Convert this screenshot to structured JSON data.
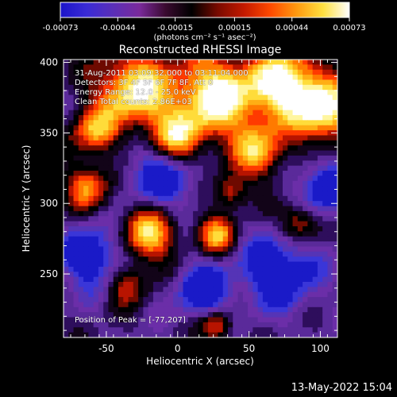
{
  "chart_data": {
    "type": "heatmap",
    "title": "Reconstructed RHESSI Image",
    "xlabel": "Heliocentric X (arcsec)",
    "ylabel": "Heliocentric Y (arcsec)",
    "xlim": [
      -80,
      112
    ],
    "ylim": [
      205,
      402
    ],
    "x_ticks": [
      -50,
      0,
      50,
      100
    ],
    "y_ticks": [
      250,
      300,
      350,
      400
    ],
    "colorbar": {
      "label": "(photons cm⁻² s⁻¹ asec⁻²)",
      "ticks": [
        "-0.00073",
        "-0.00044",
        "-0.00015",
        "0.00015",
        "0.00044",
        "0.00073"
      ],
      "range": [
        -0.00073,
        0.00073
      ],
      "colors": [
        "#1b14c8",
        "#3a2bd6",
        "#5a2fb8",
        "#7a2a9c",
        "#3a0a30",
        "#000000",
        "#7a0a00",
        "#c41a00",
        "#ff4a00",
        "#ff9a10",
        "#ffe040",
        "#ffffff"
      ]
    },
    "peak": {
      "x": -77,
      "y": 207
    },
    "annotations": {
      "time": "31-Aug-2011 03:09:32.000 to 03:11:04.000",
      "detectors": "Detectors: 3F 4F 5F 6F 7F 8F, Att 0",
      "energy": "Energy Range: 12.0 - 25.0 keV",
      "clean": "Clean     Total counts: 2.86E+03",
      "peak_label": "Position of Peak = [-77,207]"
    },
    "grid": false
  },
  "footer": {
    "date": "13-May-2022 15:04"
  }
}
